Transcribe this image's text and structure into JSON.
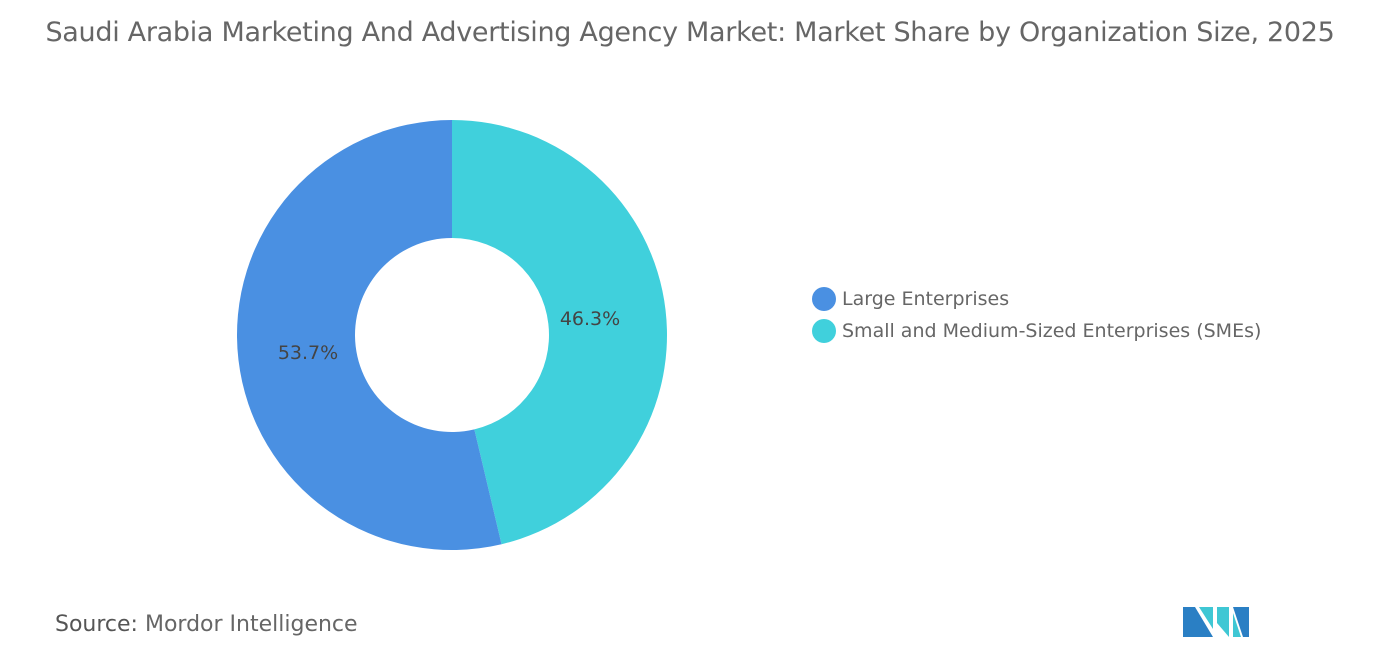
{
  "title": "Saudi Arabia Marketing And Advertising Agency Market: Market Share by Organization Size, 2025",
  "chart_data": {
    "type": "pie",
    "donut": true,
    "title": "Saudi Arabia Marketing And Advertising Agency Market: Market Share by Organization Size, 2025",
    "categories": [
      "Small and Medium-Sized Enterprises (SMEs)",
      "Large Enterprises"
    ],
    "values": [
      46.3,
      53.7
    ],
    "labels": [
      "46.3%",
      "53.7%"
    ],
    "colors": [
      "#40D0DC",
      "#4A90E2"
    ],
    "legend": {
      "placement": "right",
      "entries": [
        "Large Enterprises",
        "Small and Medium-Sized Enterprises (SMEs)"
      ],
      "colors": [
        "#4A90E2",
        "#40D0DC"
      ]
    }
  },
  "source": {
    "label": "Source:",
    "value": "Mordor Intelligence"
  },
  "logo": {
    "text": "Mordor Intelligence logo",
    "colors": [
      "#2A7FC4",
      "#3FC7D4"
    ]
  }
}
